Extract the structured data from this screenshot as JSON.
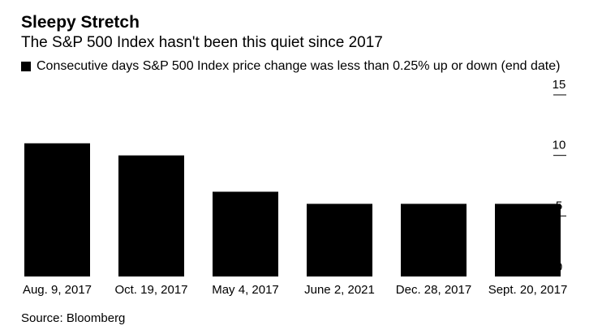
{
  "chart_data": {
    "type": "bar",
    "title": "Sleepy Stretch",
    "subtitle": "The S&P 500 Index hasn't been this quiet since 2017",
    "legend": {
      "label": "Consecutive days S&P 500 Index price change was less than 0.25% up or down (end date)",
      "placement": "top-left"
    },
    "categories": [
      "Aug. 9, 2017",
      "Oct. 19, 2017",
      "May 4, 2017",
      "June 2, 2021",
      "Dec. 28, 2017",
      "Sept. 20, 2017"
    ],
    "values": [
      11,
      10,
      7,
      6,
      6,
      6
    ],
    "ylim": [
      0,
      15
    ],
    "yticks": [
      0,
      5,
      10,
      15
    ],
    "yaxis_side": "right",
    "grid": false,
    "xlabel": "",
    "ylabel": "",
    "source": "Source: Bloomberg"
  },
  "colors": {
    "bar": "#000000",
    "text": "#000000",
    "axis": "#000000"
  }
}
